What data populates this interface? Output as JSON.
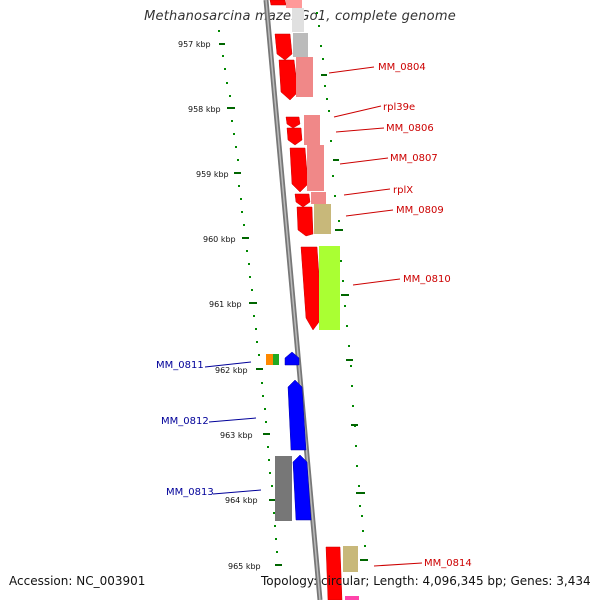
{
  "title": "Methanosarcina mazei Go1, complete genome",
  "footer": {
    "accession": "Accession: NC_003901",
    "topology": "Topology: circular; Length: 4,096,345 bp; Genes: 3,434"
  },
  "ticks": [
    "957 kbp",
    "958 kbp",
    "959 kbp",
    "960 kbp",
    "961 kbp",
    "962 kbp",
    "963 kbp",
    "964 kbp",
    "965 kbp"
  ],
  "gene_labels_forward": [
    "MM_0804",
    "rpl39e",
    "MM_0806",
    "MM_0807",
    "rplX",
    "MM_0809",
    "MM_0810",
    "MM_0814"
  ],
  "gene_labels_reverse": [
    "MM_0811",
    "MM_0812",
    "MM_0813"
  ],
  "colors": {
    "forward_strand": "#ff0000",
    "reverse_strand": "#0000ff",
    "backbone": "#888888",
    "ticks": "#006600",
    "forward_label": "#cc0000",
    "reverse_label": "#000099"
  }
}
